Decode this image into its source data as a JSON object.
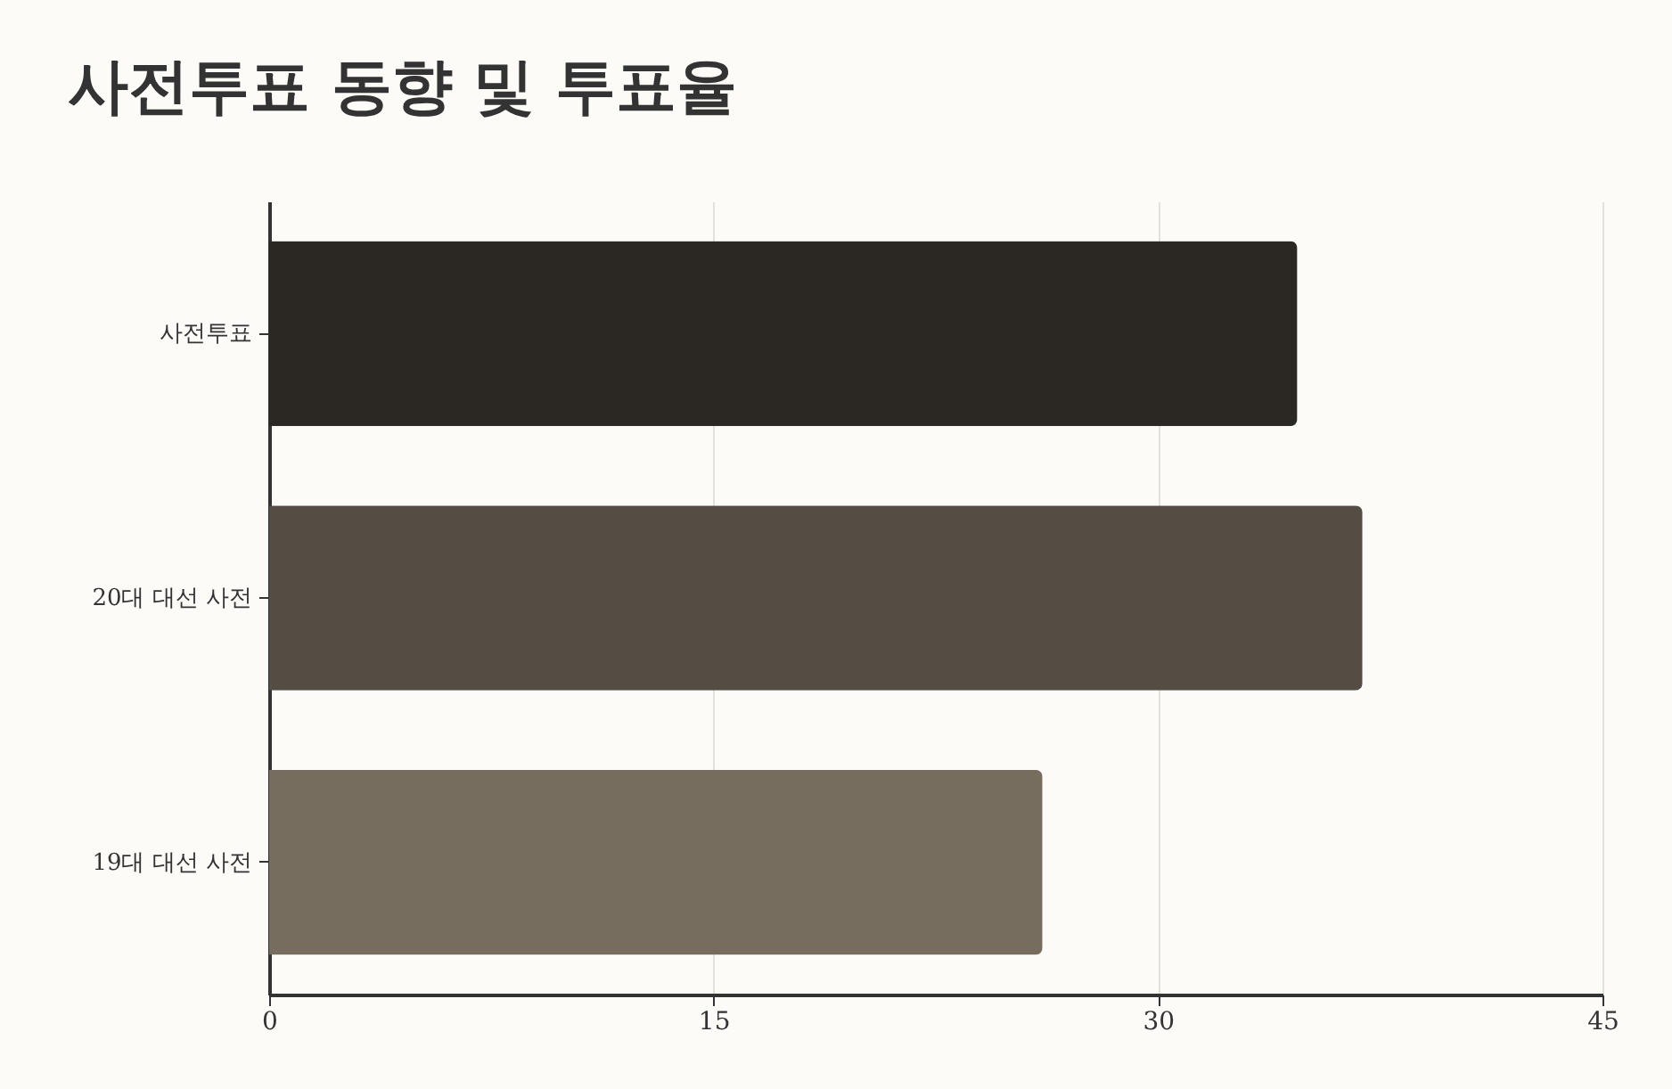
{
  "chart_data": {
    "type": "bar",
    "orientation": "horizontal",
    "title": "사전투표 동향 및 투표율",
    "categories": [
      "사전투표",
      "20대 대선 사전",
      "19대 대선 사전"
    ],
    "values": [
      34.7,
      36.9,
      26.1
    ],
    "colors": [
      "#2b2823",
      "#544d43",
      "#776d5f"
    ],
    "xlim": [
      0,
      45
    ],
    "xticks": [
      0,
      15,
      30,
      45
    ],
    "grid": "x"
  }
}
